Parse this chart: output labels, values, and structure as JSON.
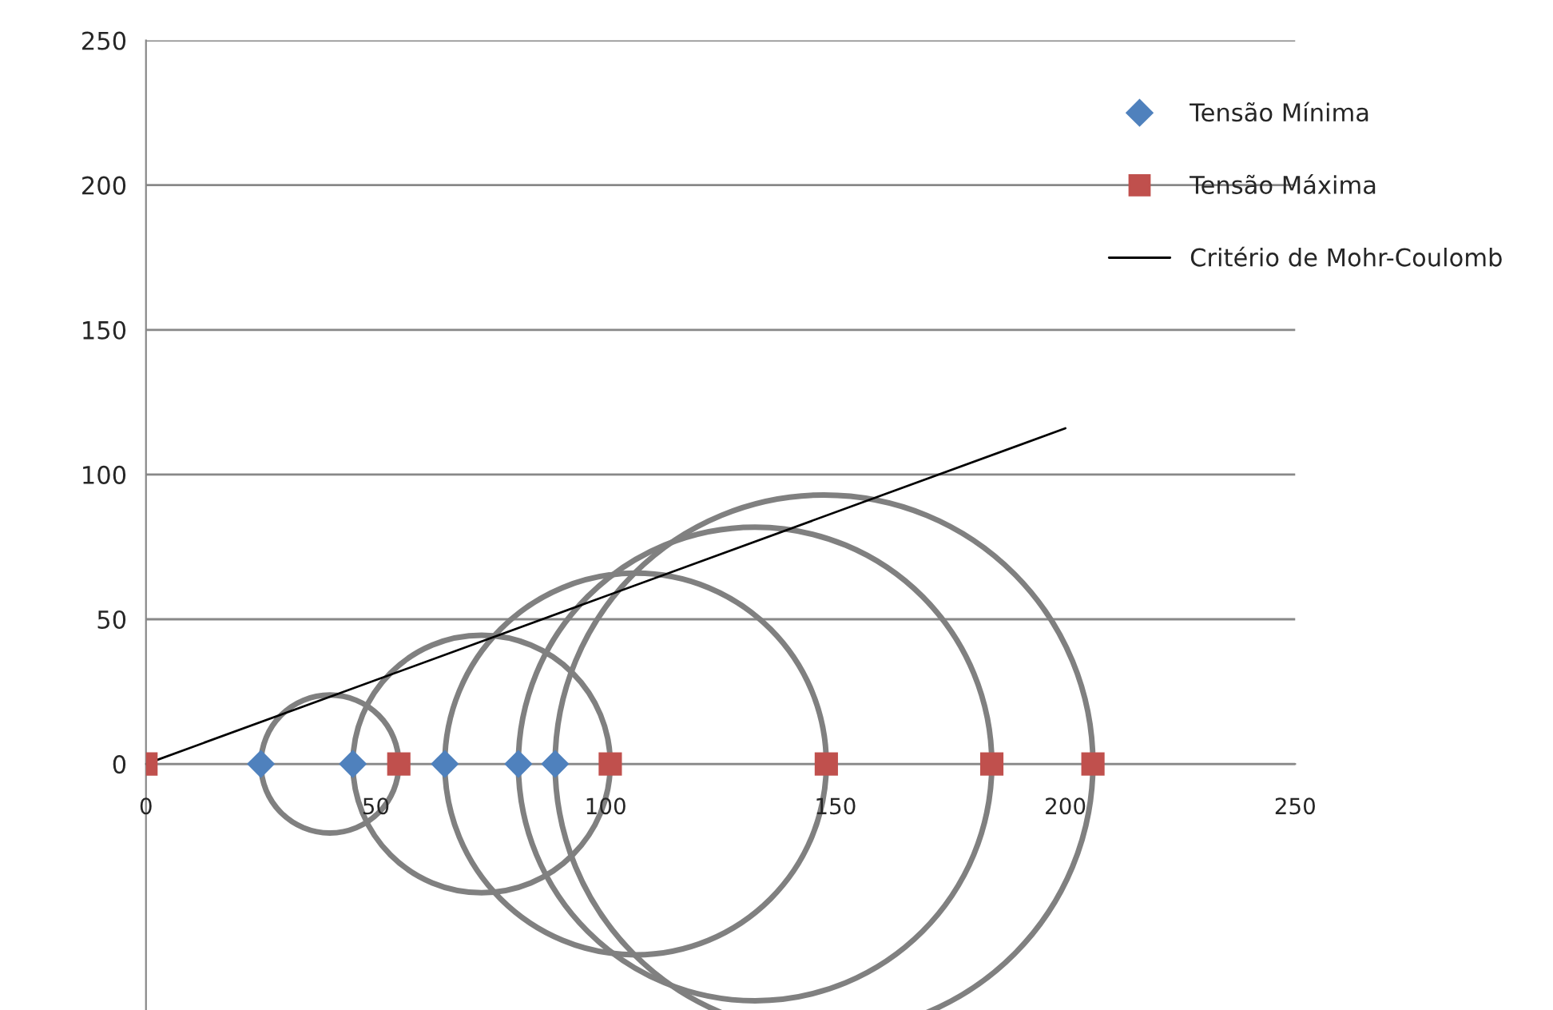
{
  "chart_data": {
    "type": "scatter",
    "xlim": [
      0,
      250
    ],
    "ylim": [
      -85,
      250
    ],
    "xticks": [
      0,
      50,
      100,
      150,
      200,
      250
    ],
    "yticks": [
      0,
      50,
      100,
      150,
      200,
      250
    ],
    "grid": "y",
    "legend": "top right",
    "series": [
      {
        "name": "Tensão Mínima",
        "marker": "diamond",
        "color": "#4f81bd",
        "x": [
          25,
          45,
          65,
          81,
          89
        ],
        "values": [
          0,
          0,
          0,
          0,
          0
        ]
      },
      {
        "name": "Tensão Máxima",
        "marker": "square",
        "color": "#c0504d",
        "x": [
          0,
          55,
          101,
          148,
          184,
          206
        ],
        "values": [
          0,
          0,
          0,
          0,
          0,
          0
        ]
      },
      {
        "name": "Critério de Mohr-Coulomb",
        "type": "line",
        "marker": "none",
        "color": "#000000",
        "x": [
          0,
          200
        ],
        "values": [
          0,
          116
        ]
      }
    ]
  }
}
